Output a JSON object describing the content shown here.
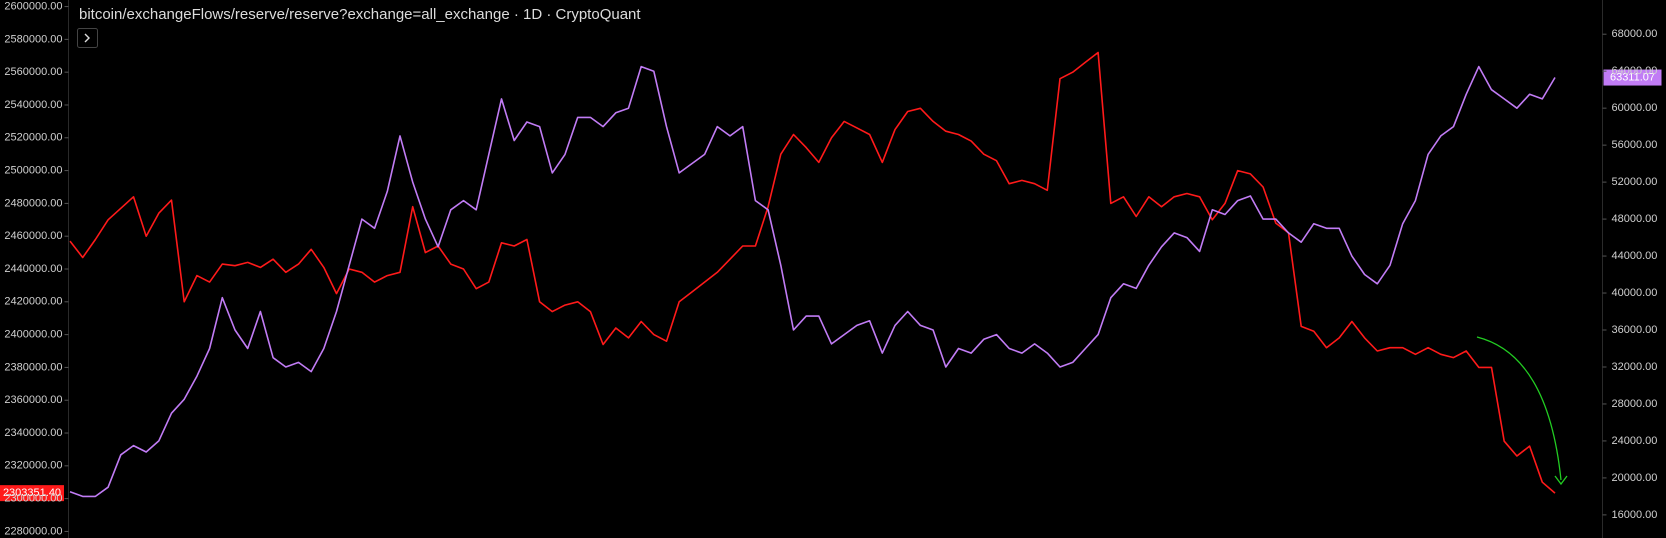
{
  "chart_data": {
    "type": "line",
    "title": "bitcoin/exchangeFlows/reserve/reserve?exchange=all_exchange · 1D · CryptoQuant",
    "grid": false,
    "ylim": [
      2276000,
      2604000
    ],
    "yticks": [
      {
        "value": 2280000,
        "label": "2280000.00"
      },
      {
        "value": 2300000,
        "label": "2300000.00"
      },
      {
        "value": 2320000,
        "label": "2320000.00"
      },
      {
        "value": 2340000,
        "label": "2340000.00"
      },
      {
        "value": 2360000,
        "label": "2360000.00"
      },
      {
        "value": 2380000,
        "label": "2380000.00"
      },
      {
        "value": 2400000,
        "label": "2400000.00"
      },
      {
        "value": 2420000,
        "label": "2420000.00"
      },
      {
        "value": 2440000,
        "label": "2440000.00"
      },
      {
        "value": 2460000,
        "label": "2460000.00"
      },
      {
        "value": 2480000,
        "label": "2480000.00"
      },
      {
        "value": 2500000,
        "label": "2500000.00"
      },
      {
        "value": 2520000,
        "label": "2520000.00"
      },
      {
        "value": 2540000,
        "label": "2540000.00"
      },
      {
        "value": 2560000,
        "label": "2560000.00"
      },
      {
        "value": 2580000,
        "label": "2580000.00"
      },
      {
        "value": 2600000,
        "label": "2600000.00"
      }
    ],
    "y2lim": [
      13500,
      71700
    ],
    "y2ticks": [
      {
        "value": 16000,
        "label": "16000.00"
      },
      {
        "value": 20000,
        "label": "20000.00"
      },
      {
        "value": 24000,
        "label": "24000.00"
      },
      {
        "value": 28000,
        "label": "28000.00"
      },
      {
        "value": 32000,
        "label": "32000.00"
      },
      {
        "value": 36000,
        "label": "36000.00"
      },
      {
        "value": 40000,
        "label": "40000.00"
      },
      {
        "value": 44000,
        "label": "44000.00"
      },
      {
        "value": 48000,
        "label": "48000.00"
      },
      {
        "value": 52000,
        "label": "52000.00"
      },
      {
        "value": 56000,
        "label": "56000.00"
      },
      {
        "value": 60000,
        "label": "60000.00"
      },
      {
        "value": 64000,
        "label": "64000.00"
      },
      {
        "value": 68000,
        "label": "68000.00"
      }
    ],
    "series": [
      {
        "color": "#ff1a1a",
        "last_label": "2303351.40",
        "values": [
          2457000,
          2447000,
          2458000,
          2470000,
          2477000,
          2484000,
          2460000,
          2474000,
          2482000,
          2420000,
          2436000,
          2432000,
          2443000,
          2442000,
          2444000,
          2441000,
          2446000,
          2438000,
          2443000,
          2452000,
          2441000,
          2425000,
          2440000,
          2438000,
          2432000,
          2436000,
          2438000,
          2478000,
          2450000,
          2454000,
          2443000,
          2440000,
          2428000,
          2432000,
          2456000,
          2454000,
          2458000,
          2420000,
          2414000,
          2418000,
          2420000,
          2414000,
          2394000,
          2404000,
          2398000,
          2408000,
          2400000,
          2396000,
          2420000,
          2426000,
          2432000,
          2438000,
          2446000,
          2454000,
          2454000,
          2478000,
          2510000,
          2522000,
          2514000,
          2505000,
          2520000,
          2530000,
          2526000,
          2522000,
          2505000,
          2525000,
          2536000,
          2538000,
          2530000,
          2524000,
          2522000,
          2518000,
          2510000,
          2506000,
          2492000,
          2494000,
          2492000,
          2488000,
          2556000,
          2560000,
          2566000,
          2572000,
          2480000,
          2484000,
          2472000,
          2484000,
          2478000,
          2484000,
          2486000,
          2484000,
          2470000,
          2480000,
          2500000,
          2498000,
          2490000,
          2468000,
          2462000,
          2405000,
          2402000,
          2392000,
          2398000,
          2408000,
          2398000,
          2390000,
          2392000,
          2392000,
          2388000,
          2392000,
          2388000,
          2386000,
          2390000,
          2380000,
          2380000,
          2335000,
          2326000,
          2332000,
          2310000,
          2303351.4
        ]
      },
      {
        "color": "#c17cf5",
        "axis": "y2",
        "last_label": "63311.07",
        "values": [
          18500,
          18000,
          18000,
          19000,
          22500,
          23500,
          22800,
          24000,
          27000,
          28500,
          31000,
          34000,
          39500,
          36000,
          34000,
          38000,
          33000,
          32000,
          32500,
          31500,
          34000,
          38000,
          43000,
          48000,
          47000,
          51000,
          57000,
          52000,
          48000,
          45000,
          49000,
          50000,
          49000,
          55000,
          61000,
          56500,
          58500,
          58000,
          53000,
          55000,
          59000,
          59000,
          58000,
          59500,
          60000,
          64500,
          64000,
          58000,
          53000,
          54000,
          55000,
          58000,
          57000,
          58000,
          50000,
          49000,
          43000,
          36000,
          37500,
          37500,
          34500,
          35500,
          36500,
          37000,
          33500,
          36500,
          38000,
          36500,
          36000,
          32000,
          34000,
          33500,
          35000,
          35500,
          34000,
          33500,
          34500,
          33500,
          32000,
          32500,
          34000,
          35500,
          39500,
          41000,
          40500,
          43000,
          45000,
          46500,
          46000,
          44500,
          49000,
          48500,
          50000,
          50500,
          48000,
          48000,
          46500,
          45500,
          47500,
          47000,
          47000,
          44000,
          42000,
          41000,
          43000,
          47500,
          50000,
          55000,
          57000,
          58000,
          61500,
          64500,
          62000,
          61000,
          60000,
          61500,
          61000,
          63311.07
        ]
      }
    ]
  }
}
